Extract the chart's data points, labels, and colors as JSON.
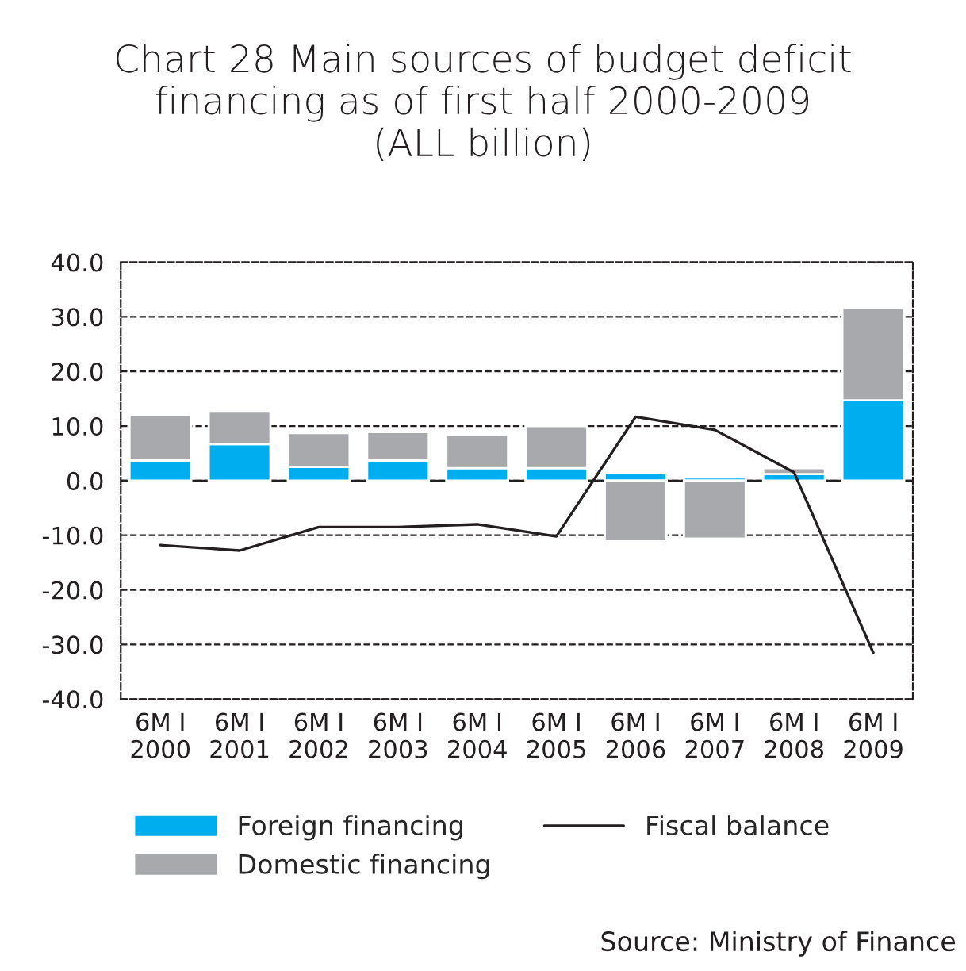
{
  "chart_data": {
    "type": "bar",
    "title": "Chart 28 Main sources of budget deficit\nfinancing as of first half 2000-2009\n(ALL billion)",
    "categories": [
      "6M I\n2000",
      "6M I\n2001",
      "6M I\n2002",
      "6M I\n2003",
      "6M I\n2004",
      "6M I\n2005",
      "6M I\n2006",
      "6M I\n2007",
      "6M I\n2008",
      "6M I\n2009"
    ],
    "stacked": true,
    "series": [
      {
        "name": "Foreign financing",
        "color": "#00aeef",
        "values": [
          3.7,
          6.7,
          2.5,
          3.7,
          2.3,
          2.3,
          1.5,
          0.6,
          1.2,
          14.7
        ]
      },
      {
        "name": "Domestic financing",
        "color": "#a7a9ac",
        "values": [
          8.3,
          6.1,
          6.2,
          5.2,
          6.1,
          7.7,
          -11.1,
          -10.6,
          1.1,
          17.0
        ]
      },
      {
        "name": "Fiscal balance",
        "type": "line",
        "color": "#231f20",
        "line_style": "solid",
        "marker": "none",
        "values": [
          -11.8,
          -12.8,
          -8.5,
          -8.5,
          -8.0,
          -10.2,
          11.7,
          9.3,
          1.5,
          -31.5
        ]
      }
    ],
    "ylim": [
      -40,
      40
    ],
    "yticks": [
      {
        "value": -40,
        "label": "-40.0"
      },
      {
        "value": -30,
        "label": "-30.0"
      },
      {
        "value": -20,
        "label": "-20.0"
      },
      {
        "value": -10,
        "label": "-10.0"
      },
      {
        "value": 0,
        "label": "0.0"
      },
      {
        "value": 10,
        "label": "10.0"
      },
      {
        "value": 20,
        "label": "20.0"
      },
      {
        "value": 30,
        "label": "30.0"
      },
      {
        "value": 40,
        "label": "40.0"
      }
    ],
    "grid": "y",
    "legend": "bottom",
    "annotations": [
      "Source: Ministry of Finance"
    ]
  }
}
